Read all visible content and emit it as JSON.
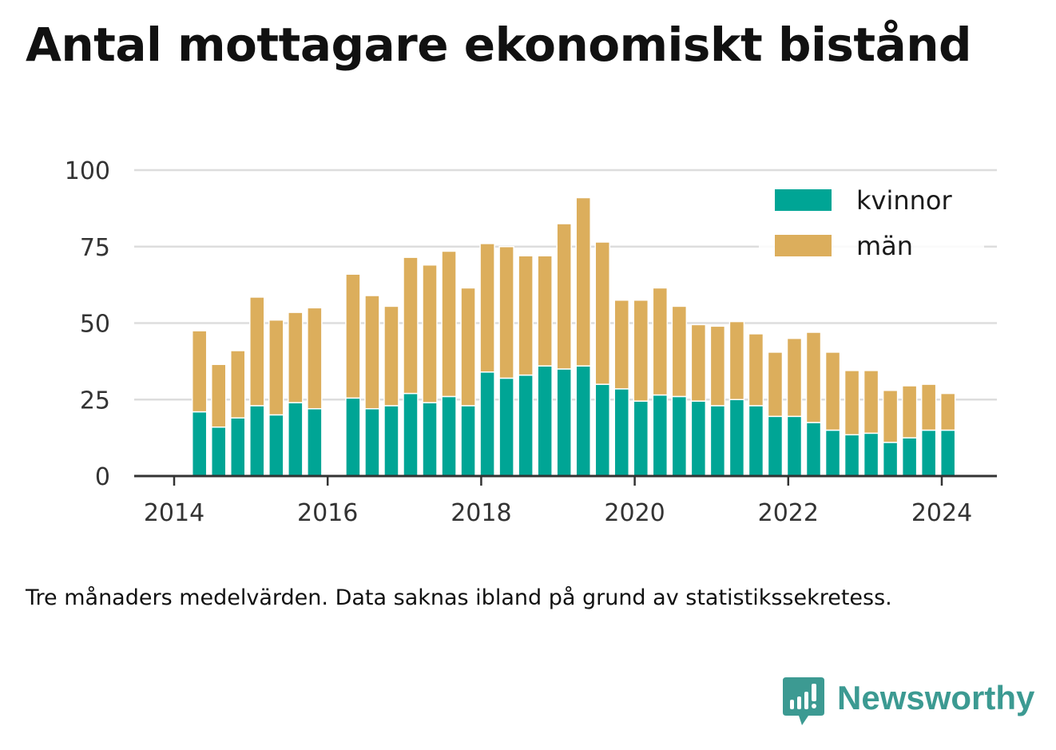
{
  "title": "Antal mottagare ekonomiskt bistånd",
  "footnote": "Tre månaders medelvärden. Data saknas ibland på grund av statistikssekretess.",
  "brand": {
    "name": "Newsworthy",
    "logo_icon": "bar-chart-speech-bubble-icon",
    "color": "#3c9a92"
  },
  "colors": {
    "kvinnor": "#00a595",
    "man": "#dcae5c",
    "grid": "#dddddd",
    "axis": "#333333"
  },
  "chart_data": {
    "type": "bar",
    "stacked": true,
    "grid": true,
    "legend_position": "top-right",
    "ylim": [
      0,
      100
    ],
    "yticks": [
      0,
      25,
      50,
      75,
      100
    ],
    "xticks": [
      2014,
      2016,
      2018,
      2020,
      2022,
      2024
    ],
    "xlim": [
      2013.5,
      2024.7
    ],
    "x": [
      2014.33,
      2014.58,
      2014.83,
      2015.08,
      2015.33,
      2015.58,
      2015.83,
      2016.33,
      2016.58,
      2016.83,
      2017.08,
      2017.33,
      2017.58,
      2017.83,
      2018.08,
      2018.33,
      2018.58,
      2018.83,
      2019.08,
      2019.33,
      2019.58,
      2019.83,
      2020.08,
      2020.33,
      2020.58,
      2020.83,
      2021.08,
      2021.33,
      2021.58,
      2021.83,
      2022.08,
      2022.33,
      2022.58,
      2022.83,
      2023.08,
      2023.33,
      2023.58,
      2023.83,
      2024.08
    ],
    "series": [
      {
        "name": "kvinnor",
        "color": "#00a595",
        "values": [
          21,
          16,
          19,
          23,
          20,
          24,
          22,
          25.5,
          22,
          23,
          27,
          24,
          26,
          23,
          34,
          32,
          33,
          36,
          35,
          36,
          30,
          28.5,
          24.5,
          26.5,
          26,
          24.5,
          23,
          25,
          23,
          19.5,
          19.5,
          17.5,
          15,
          13.5,
          14,
          11,
          12.5,
          15,
          15
        ]
      },
      {
        "name": "män",
        "color": "#dcae5c",
        "values": [
          26.5,
          20.5,
          22,
          35.5,
          31,
          29.5,
          33,
          40.5,
          37,
          32.5,
          44.5,
          45,
          47.5,
          38.5,
          42,
          43,
          39,
          36,
          47.5,
          55,
          46.5,
          29,
          33,
          35,
          29.5,
          25,
          26,
          25.5,
          23.5,
          21,
          25.5,
          29.5,
          25.5,
          21,
          20.5,
          17,
          17,
          15,
          12
        ]
      }
    ]
  }
}
